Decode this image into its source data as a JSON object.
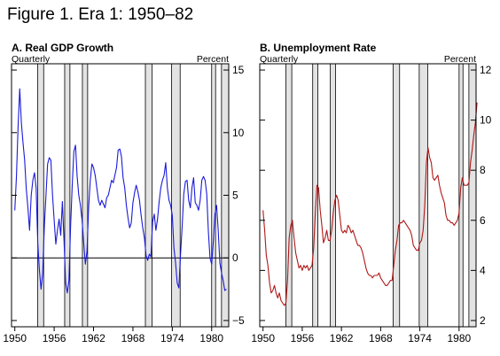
{
  "figure_title": "Figure 1. Era 1: 1950–82",
  "colors": {
    "gdp_line": "#1a1adb",
    "unemployment_line": "#b01818",
    "recession_fill": "#e3e3e3"
  },
  "chart_data": [
    {
      "type": "line",
      "title": "A. Real GDP Growth",
      "frequency_label": "Quarterly",
      "unit_label": "Percent",
      "x_ticks": [
        "1950",
        "1956",
        "1962",
        "1968",
        "1974",
        "1980"
      ],
      "y_ticks": [
        "-5",
        "0",
        "5",
        "10",
        "15"
      ],
      "xlim": [
        1949.5,
        1982.6
      ],
      "ylim": [
        -5.5,
        15.5
      ],
      "zero_line": true,
      "recessions": [
        [
          1953.5,
          1954.4
        ],
        [
          1957.6,
          1958.4
        ],
        [
          1960.3,
          1961.1
        ],
        [
          1969.9,
          1970.9
        ],
        [
          1973.9,
          1975.2
        ],
        [
          1980.0,
          1980.6
        ],
        [
          1981.5,
          1982.9
        ]
      ],
      "series": [
        {
          "x": [
            1950.0,
            1950.25,
            1950.5,
            1950.75,
            1951.0,
            1951.25,
            1951.5,
            1951.75,
            1952.0,
            1952.25,
            1952.5,
            1952.75,
            1953.0,
            1953.25,
            1953.5,
            1953.75,
            1954.0,
            1954.25,
            1954.5,
            1954.75,
            1955.0,
            1955.25,
            1955.5,
            1955.75,
            1956.0,
            1956.25,
            1956.5,
            1956.75,
            1957.0,
            1957.25,
            1957.5,
            1957.75,
            1958.0,
            1958.25,
            1958.5,
            1958.75,
            1959.0,
            1959.25,
            1959.5,
            1959.75,
            1960.0,
            1960.25,
            1960.5,
            1960.75,
            1961.0,
            1961.25,
            1961.5,
            1961.75,
            1962.0,
            1962.25,
            1962.5,
            1962.75,
            1963.0,
            1963.25,
            1963.5,
            1963.75,
            1964.0,
            1964.25,
            1964.5,
            1964.75,
            1965.0,
            1965.25,
            1965.5,
            1965.75,
            1966.0,
            1966.25,
            1966.5,
            1966.75,
            1967.0,
            1967.25,
            1967.5,
            1967.75,
            1968.0,
            1968.25,
            1968.5,
            1968.75,
            1969.0,
            1969.25,
            1969.5,
            1969.75,
            1970.0,
            1970.25,
            1970.5,
            1970.75,
            1971.0,
            1971.25,
            1971.5,
            1971.75,
            1972.0,
            1972.25,
            1972.5,
            1972.75,
            1973.0,
            1973.25,
            1973.5,
            1973.75,
            1974.0,
            1974.25,
            1974.5,
            1974.75,
            1975.0,
            1975.25,
            1975.5,
            1975.75,
            1976.0,
            1976.25,
            1976.5,
            1976.75,
            1977.0,
            1977.25,
            1977.5,
            1977.75,
            1978.0,
            1978.25,
            1978.5,
            1978.75,
            1979.0,
            1979.25,
            1979.5,
            1979.75,
            1980.0,
            1980.25,
            1980.5,
            1980.75,
            1981.0,
            1981.25,
            1981.5,
            1981.75,
            1982.0,
            1982.25
          ],
          "values": [
            3.8,
            6.5,
            10.5,
            13.5,
            10.8,
            9.2,
            7.8,
            5.5,
            4.0,
            2.2,
            5.0,
            6.2,
            6.8,
            5.6,
            1.2,
            -1.0,
            -2.5,
            -1.2,
            2.5,
            5.0,
            7.5,
            8.0,
            7.8,
            5.0,
            3.0,
            1.1,
            2.2,
            3.1,
            1.8,
            4.5,
            1.4,
            -2.0,
            -2.8,
            -1.8,
            2.5,
            5.8,
            8.5,
            9.0,
            6.5,
            5.0,
            4.2,
            3.0,
            1.2,
            -0.5,
            0.5,
            4.0,
            6.2,
            7.5,
            7.2,
            6.6,
            5.6,
            4.6,
            4.2,
            4.6,
            4.3,
            4.0,
            4.8,
            5.0,
            5.6,
            6.2,
            6.0,
            6.6,
            7.2,
            8.6,
            8.7,
            8.1,
            6.4,
            5.6,
            4.2,
            3.2,
            2.4,
            2.8,
            4.4,
            5.2,
            5.8,
            5.3,
            4.6,
            3.4,
            2.4,
            1.6,
            0.2,
            -0.2,
            0.3,
            0.1,
            2.9,
            3.5,
            2.2,
            3.1,
            4.5,
            5.6,
            6.2,
            6.6,
            7.6,
            5.6,
            4.6,
            4.2,
            3.4,
            0.8,
            -0.4,
            -2.0,
            -2.4,
            0.2,
            2.5,
            5.1,
            6.1,
            6.2,
            4.6,
            4.0,
            5.6,
            6.4,
            4.4,
            4.2,
            3.8,
            4.6,
            6.2,
            6.5,
            6.2,
            5.1,
            2.1,
            0.0,
            -0.5,
            1.3,
            3.5,
            4.2,
            2.2,
            -0.4,
            -1.2,
            -1.8,
            -2.6,
            -2.5
          ]
        }
      ]
    },
    {
      "type": "line",
      "title": "B. Unemployment Rate",
      "frequency_label": "Quarterly",
      "unit_label": "Percent",
      "x_ticks": [
        "1950",
        "1956",
        "1962",
        "1968",
        "1974",
        "1980"
      ],
      "y_ticks": [
        "2",
        "4",
        "6",
        "8",
        "10",
        "12"
      ],
      "xlim": [
        1949.5,
        1982.6
      ],
      "ylim": [
        1.75,
        12.25
      ],
      "recessions": [
        [
          1953.5,
          1954.4
        ],
        [
          1957.6,
          1958.4
        ],
        [
          1960.3,
          1961.1
        ],
        [
          1969.9,
          1970.9
        ],
        [
          1973.9,
          1975.2
        ],
        [
          1980.0,
          1980.6
        ],
        [
          1981.5,
          1982.9
        ]
      ],
      "series": [
        {
          "x": [
            1950.0,
            1950.25,
            1950.5,
            1950.75,
            1951.0,
            1951.25,
            1951.5,
            1951.75,
            1952.0,
            1952.25,
            1952.5,
            1952.75,
            1953.0,
            1953.25,
            1953.5,
            1953.75,
            1954.0,
            1954.25,
            1954.5,
            1954.75,
            1955.0,
            1955.25,
            1955.5,
            1955.75,
            1956.0,
            1956.25,
            1956.5,
            1956.75,
            1957.0,
            1957.25,
            1957.5,
            1957.75,
            1958.0,
            1958.25,
            1958.5,
            1958.75,
            1959.0,
            1959.25,
            1959.5,
            1959.75,
            1960.0,
            1960.25,
            1960.5,
            1960.75,
            1961.0,
            1961.25,
            1961.5,
            1961.75,
            1962.0,
            1962.25,
            1962.5,
            1962.75,
            1963.0,
            1963.25,
            1963.5,
            1963.75,
            1964.0,
            1964.25,
            1964.5,
            1964.75,
            1965.0,
            1965.25,
            1965.5,
            1965.75,
            1966.0,
            1966.25,
            1966.5,
            1966.75,
            1967.0,
            1967.25,
            1967.5,
            1967.75,
            1968.0,
            1968.25,
            1968.5,
            1968.75,
            1969.0,
            1969.25,
            1969.5,
            1969.75,
            1970.0,
            1970.25,
            1970.5,
            1970.75,
            1971.0,
            1971.25,
            1971.5,
            1971.75,
            1972.0,
            1972.25,
            1972.5,
            1972.75,
            1973.0,
            1973.25,
            1973.5,
            1973.75,
            1974.0,
            1974.25,
            1974.5,
            1974.75,
            1975.0,
            1975.25,
            1975.5,
            1975.75,
            1976.0,
            1976.25,
            1976.5,
            1976.75,
            1977.0,
            1977.25,
            1977.5,
            1977.75,
            1978.0,
            1978.25,
            1978.5,
            1978.75,
            1979.0,
            1979.25,
            1979.5,
            1979.75,
            1980.0,
            1980.25,
            1980.5,
            1980.75,
            1981.0,
            1981.25,
            1981.5,
            1981.75,
            1982.0,
            1982.25,
            1982.5,
            1982.75
          ],
          "values": [
            6.4,
            5.6,
            4.6,
            4.2,
            3.5,
            3.1,
            3.2,
            3.4,
            3.1,
            2.9,
            3.1,
            2.8,
            2.7,
            2.6,
            2.7,
            3.6,
            5.3,
            5.8,
            6.0,
            5.3,
            4.7,
            4.4,
            4.1,
            4.2,
            4.0,
            4.2,
            4.1,
            4.2,
            4.0,
            4.1,
            4.2,
            4.9,
            6.3,
            7.4,
            7.3,
            6.4,
            5.8,
            5.1,
            5.3,
            5.6,
            5.2,
            5.2,
            5.6,
            6.3,
            6.8,
            7.0,
            6.8,
            6.2,
            5.6,
            5.5,
            5.6,
            5.5,
            5.8,
            5.7,
            5.5,
            5.6,
            5.4,
            5.2,
            5.0,
            5.0,
            4.9,
            4.7,
            4.4,
            4.1,
            3.9,
            3.8,
            3.8,
            3.7,
            3.8,
            3.8,
            3.8,
            3.9,
            3.7,
            3.6,
            3.5,
            3.4,
            3.4,
            3.5,
            3.6,
            3.6,
            4.2,
            4.8,
            5.2,
            5.8,
            5.9,
            5.9,
            6.0,
            5.9,
            5.8,
            5.7,
            5.6,
            5.4,
            5.0,
            4.9,
            4.8,
            4.8,
            5.1,
            5.2,
            5.6,
            6.6,
            8.3,
            8.9,
            8.5,
            8.3,
            7.7,
            7.6,
            7.7,
            7.8,
            7.4,
            7.1,
            6.9,
            6.7,
            6.2,
            6.0,
            6.0,
            5.9,
            5.9,
            5.8,
            5.9,
            6.0,
            6.3,
            7.3,
            7.7,
            7.4,
            7.4,
            7.4,
            7.5,
            8.3,
            8.8,
            9.4,
            9.9,
            10.7
          ]
        }
      ]
    }
  ]
}
